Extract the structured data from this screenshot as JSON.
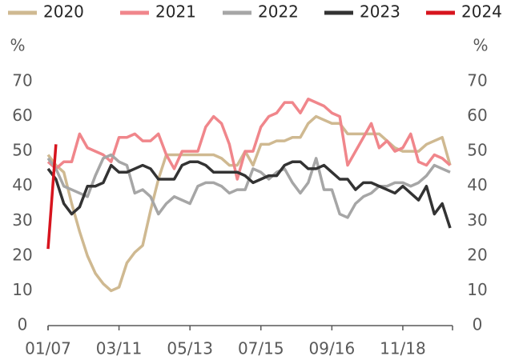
{
  "chart_data": {
    "type": "line",
    "y_label": "%",
    "y2_label": "%",
    "categories": [
      "01/07",
      null,
      null,
      null,
      null,
      null,
      null,
      null,
      null,
      "03/11",
      null,
      null,
      null,
      null,
      null,
      null,
      null,
      null,
      "05/13",
      null,
      null,
      null,
      null,
      null,
      null,
      null,
      null,
      "07/15",
      null,
      null,
      null,
      null,
      null,
      null,
      null,
      null,
      "09/16",
      null,
      null,
      null,
      null,
      null,
      null,
      null,
      null,
      "11/18",
      null,
      null,
      null,
      null,
      null,
      null
    ],
    "series": [
      {
        "name": "2020",
        "color": "#cfb991",
        "values": [
          49,
          46,
          44,
          35,
          27,
          20,
          15,
          12,
          10,
          11,
          18,
          21,
          23,
          33,
          42,
          49,
          49,
          49,
          49,
          49,
          49,
          49,
          48,
          46,
          46,
          50,
          46,
          52,
          52,
          53,
          53,
          54,
          54,
          58,
          60,
          59,
          58,
          58,
          55,
          55,
          55,
          55,
          55,
          53,
          51,
          50,
          50,
          50,
          52,
          53,
          54,
          46
        ]
      },
      {
        "name": "2021",
        "color": "#f0868b",
        "values": [
          47,
          45,
          47,
          47,
          55,
          51,
          50,
          49,
          47,
          54,
          54,
          55,
          53,
          53,
          55,
          49,
          45,
          50,
          50,
          50,
          57,
          60,
          58,
          52,
          42,
          50,
          50,
          57,
          60,
          61,
          64,
          64,
          61,
          65,
          64,
          63,
          61,
          60,
          46,
          50,
          54,
          58,
          51,
          53,
          50,
          51,
          55,
          47,
          46,
          49,
          48,
          46
        ]
      },
      {
        "name": "2022",
        "color": "#a6a6a6",
        "values": [
          48,
          45,
          40,
          39,
          38,
          37,
          43,
          48,
          49,
          47,
          46,
          38,
          39,
          37,
          32,
          35,
          37,
          36,
          35,
          40,
          41,
          41,
          40,
          38,
          39,
          39,
          45,
          44,
          42,
          44,
          45,
          41,
          38,
          41,
          48,
          39,
          39,
          32,
          31,
          35,
          37,
          38,
          40,
          40,
          41,
          41,
          40,
          41,
          43,
          46,
          45,
          44
        ]
      },
      {
        "name": "2023",
        "color": "#333333",
        "values": [
          45,
          42,
          35,
          32,
          34,
          40,
          40,
          41,
          46,
          44,
          44,
          45,
          46,
          45,
          42,
          42,
          42,
          46,
          47,
          47,
          46,
          44,
          44,
          44,
          44,
          43,
          41,
          42,
          43,
          43,
          46,
          47,
          47,
          45,
          45,
          46,
          44,
          42,
          42,
          39,
          41,
          41,
          40,
          39,
          38,
          40,
          38,
          36,
          40,
          32,
          35,
          28
        ]
      },
      {
        "name": "2024",
        "color": "#d7141e",
        "values": [
          22,
          52,
          null,
          null,
          null,
          null,
          null,
          null,
          null,
          null,
          null,
          null,
          null,
          null,
          null,
          null,
          null,
          null,
          null,
          null,
          null,
          null,
          null,
          null,
          null,
          null,
          null,
          null,
          null,
          null,
          null,
          null,
          null,
          null,
          null,
          null,
          null,
          null,
          null,
          null,
          null,
          null,
          null,
          null,
          null,
          null,
          null,
          null,
          null,
          null,
          null,
          null
        ]
      }
    ],
    "ylim": [
      0,
      70
    ],
    "yticks": [
      0,
      10,
      20,
      30,
      40,
      50,
      60,
      70
    ],
    "y2lim": [
      0,
      70
    ],
    "y2ticks": [
      0,
      10,
      20,
      30,
      40,
      50,
      60,
      70
    ],
    "grid": false,
    "legend": "top"
  }
}
